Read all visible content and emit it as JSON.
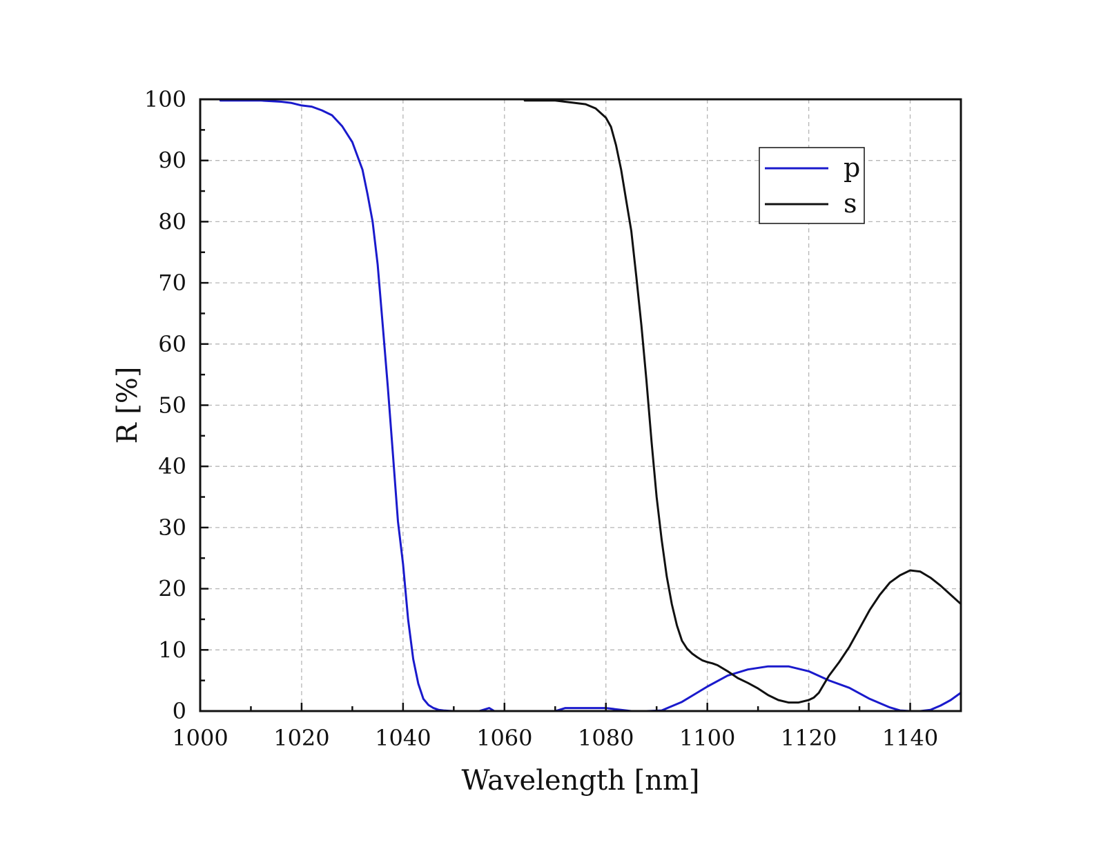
{
  "chart_data": {
    "type": "line",
    "xlabel": "Wavelength [nm]",
    "ylabel": "R [%]",
    "xlim": [
      1000,
      1150
    ],
    "ylim": [
      0,
      100
    ],
    "xticks": [
      "1000",
      "1020",
      "1040",
      "1060",
      "1080",
      "1100",
      "1120",
      "1140"
    ],
    "xtick_values": [
      1000,
      1020,
      1040,
      1060,
      1080,
      1100,
      1120,
      1140
    ],
    "yticks": [
      "0",
      "10",
      "20",
      "30",
      "40",
      "50",
      "60",
      "70",
      "80",
      "90",
      "100"
    ],
    "ytick_values": [
      0,
      10,
      20,
      30,
      40,
      50,
      60,
      70,
      80,
      90,
      100
    ],
    "grid": true,
    "legend_position": "top-right",
    "series": [
      {
        "name": "p",
        "color": "#1a1acc",
        "x": [
          1004,
          1008,
          1012,
          1016,
          1018,
          1020,
          1022,
          1024,
          1026,
          1028,
          1030,
          1032,
          1033,
          1034,
          1035,
          1036,
          1037,
          1038,
          1039,
          1040,
          1041,
          1042,
          1043,
          1044,
          1045,
          1046,
          1047,
          1048,
          1049,
          1050,
          1052,
          1055,
          1057,
          1058,
          1060,
          1065,
          1070,
          1072,
          1080,
          1085,
          1088,
          1091,
          1095,
          1098,
          1100,
          1104,
          1108,
          1112,
          1116,
          1120,
          1124,
          1128,
          1132,
          1136,
          1138,
          1140,
          1142,
          1144,
          1146,
          1148,
          1150
        ],
        "y": [
          99.8,
          99.8,
          99.8,
          99.6,
          99.4,
          99.0,
          98.8,
          98.2,
          97.4,
          95.6,
          93.0,
          88.5,
          84.5,
          80.0,
          73.0,
          63.0,
          53.0,
          42.0,
          31.0,
          24.0,
          15.0,
          8.5,
          4.5,
          2.0,
          1.0,
          0.5,
          0.2,
          0.1,
          0.05,
          0.0,
          0.0,
          0.0,
          0.5,
          0.0,
          0.0,
          0.0,
          0.0,
          0.5,
          0.5,
          0.0,
          0.0,
          0.1,
          1.5,
          3.0,
          4.0,
          5.8,
          6.8,
          7.3,
          7.3,
          6.5,
          5.0,
          3.8,
          2.0,
          0.6,
          0.1,
          0.0,
          0.0,
          0.2,
          0.9,
          1.8,
          3.0
        ]
      },
      {
        "name": "s",
        "color": "#111111",
        "x": [
          1064,
          1070,
          1076,
          1078,
          1080,
          1081,
          1082,
          1083,
          1084,
          1085,
          1086,
          1087,
          1088,
          1089,
          1090,
          1091,
          1092,
          1093,
          1094,
          1095,
          1096,
          1097,
          1098,
          1099,
          1100,
          1101,
          1102,
          1104,
          1106,
          1108,
          1110,
          1112,
          1114,
          1116,
          1118,
          1120,
          1121,
          1122,
          1123,
          1124,
          1126,
          1128,
          1130,
          1132,
          1134,
          1136,
          1138,
          1140,
          1142,
          1144,
          1146,
          1148,
          1150
        ],
        "y": [
          99.8,
          99.8,
          99.2,
          98.5,
          97.0,
          95.5,
          92.5,
          88.5,
          83.5,
          78.5,
          71.0,
          63.0,
          54.0,
          44.0,
          35.0,
          28.0,
          22.0,
          17.5,
          14.0,
          11.5,
          10.2,
          9.4,
          8.8,
          8.3,
          8.0,
          7.8,
          7.5,
          6.5,
          5.4,
          4.6,
          3.7,
          2.6,
          1.8,
          1.4,
          1.4,
          1.8,
          2.2,
          3.0,
          4.4,
          5.8,
          8.0,
          10.5,
          13.5,
          16.5,
          19.0,
          21.0,
          22.2,
          23.0,
          22.8,
          21.8,
          20.5,
          19.0,
          17.5
        ]
      }
    ]
  }
}
